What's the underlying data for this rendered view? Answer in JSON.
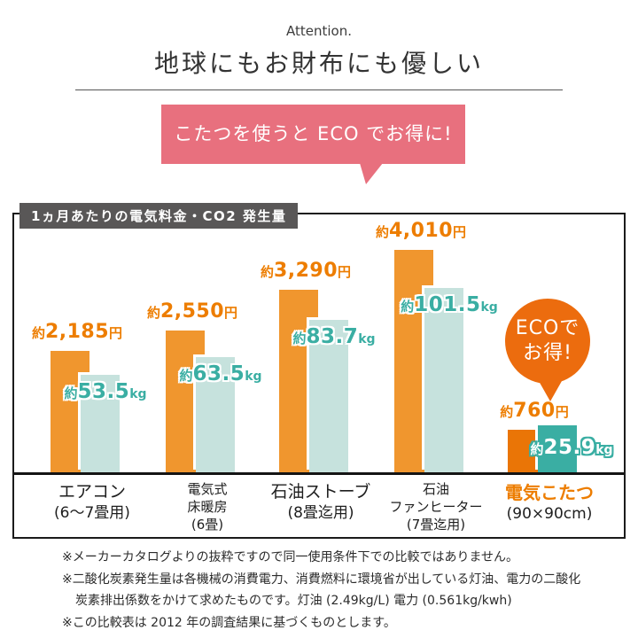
{
  "header": {
    "attention": "Attention.",
    "title": "地球にもお財布にも優しい",
    "bubble_text": "こたつを使うと ECO でお得に!"
  },
  "badge": {
    "line1": "ECOで",
    "line2": "お得!"
  },
  "chart_data": {
    "type": "bar",
    "title": "1ヵ月あたりの電気料金・CO2 発生量",
    "series": [
      {
        "name": "電気料金",
        "unit": "円",
        "values": [
          2185,
          2550,
          3290,
          4010,
          760
        ]
      },
      {
        "name": "CO2発生量",
        "unit": "kg",
        "values": [
          53.5,
          63.5,
          83.7,
          101.5,
          25.9
        ]
      }
    ],
    "categories": [
      "エアコン(6〜7畳用)",
      "電気式床暖房(6畳)",
      "石油ストーブ(8畳迄用)",
      "石油ファンヒーター(7畳迄用)",
      "電気こたつ(90×90cm)"
    ],
    "groups": [
      {
        "category_lines": [
          "エアコン"
        ],
        "category_note": "(6〜7畳用)",
        "price": {
          "prefix": "約",
          "display": "2,185",
          "suffix": "円",
          "amount": 2185
        },
        "co2": {
          "prefix": "約",
          "display": "53.5",
          "suffix": "kg",
          "amount": 53.5
        },
        "highlight": false
      },
      {
        "category_lines": [
          "電気式",
          "床暖房"
        ],
        "category_note": "(6畳)",
        "price": {
          "prefix": "約",
          "display": "2,550",
          "suffix": "円",
          "amount": 2550
        },
        "co2": {
          "prefix": "約",
          "display": "63.5",
          "suffix": "kg",
          "amount": 63.5
        },
        "highlight": false
      },
      {
        "category_lines": [
          "石油ストーブ"
        ],
        "category_note": "(8畳迄用)",
        "price": {
          "prefix": "約",
          "display": "3,290",
          "suffix": "円",
          "amount": 3290
        },
        "co2": {
          "prefix": "約",
          "display": "83.7",
          "suffix": "kg",
          "amount": 83.7
        },
        "highlight": false
      },
      {
        "category_lines": [
          "石油",
          "ファンヒーター"
        ],
        "category_note": "(7畳迄用)",
        "price": {
          "prefix": "約",
          "display": "4,010",
          "suffix": "円",
          "amount": 4010
        },
        "co2": {
          "prefix": "約",
          "display": "101.5",
          "suffix": "kg",
          "amount": 101.5
        },
        "highlight": false
      },
      {
        "category_lines": [
          "電気こたつ"
        ],
        "category_note": "(90×90cm)",
        "price": {
          "prefix": "約",
          "display": "760",
          "suffix": "円",
          "amount": 760
        },
        "co2": {
          "prefix": "約",
          "display": "25.9",
          "suffix": "kg",
          "amount": 25.9
        },
        "highlight": true
      }
    ],
    "axis": {
      "grid": false,
      "value_axis_visible": false,
      "baseline": "x"
    }
  },
  "footnotes": [
    {
      "text": "※メーカーカタログよりの抜粋ですので同一使用条件下での比較ではありません。",
      "indent": false
    },
    {
      "text": "※二酸化炭素発生量は各機械の消費電力、消費燃料に環境省が出している灯油、電力の二酸化",
      "indent": false
    },
    {
      "text": "炭素排出係数をかけて求めたものです。灯油 (2.49kg/L) 電力 (0.561kg/kwh)",
      "indent": true
    },
    {
      "text": "※この比較表は 2012 年の調査結果に基づくものとします。",
      "indent": false
    }
  ],
  "colors": {
    "bar_price_orange": "#F0962E",
    "bar_price_orange_highlight": "#EA7506",
    "bar_co2_teal_light": "#C6E2DD",
    "bar_co2_teal_dark": "#3AAEA3",
    "value_label_orange": "#ED7D00",
    "bubble_pink": "#E8707E",
    "tab_gray": "#595757",
    "badge_orange": "#EC6C0E"
  }
}
